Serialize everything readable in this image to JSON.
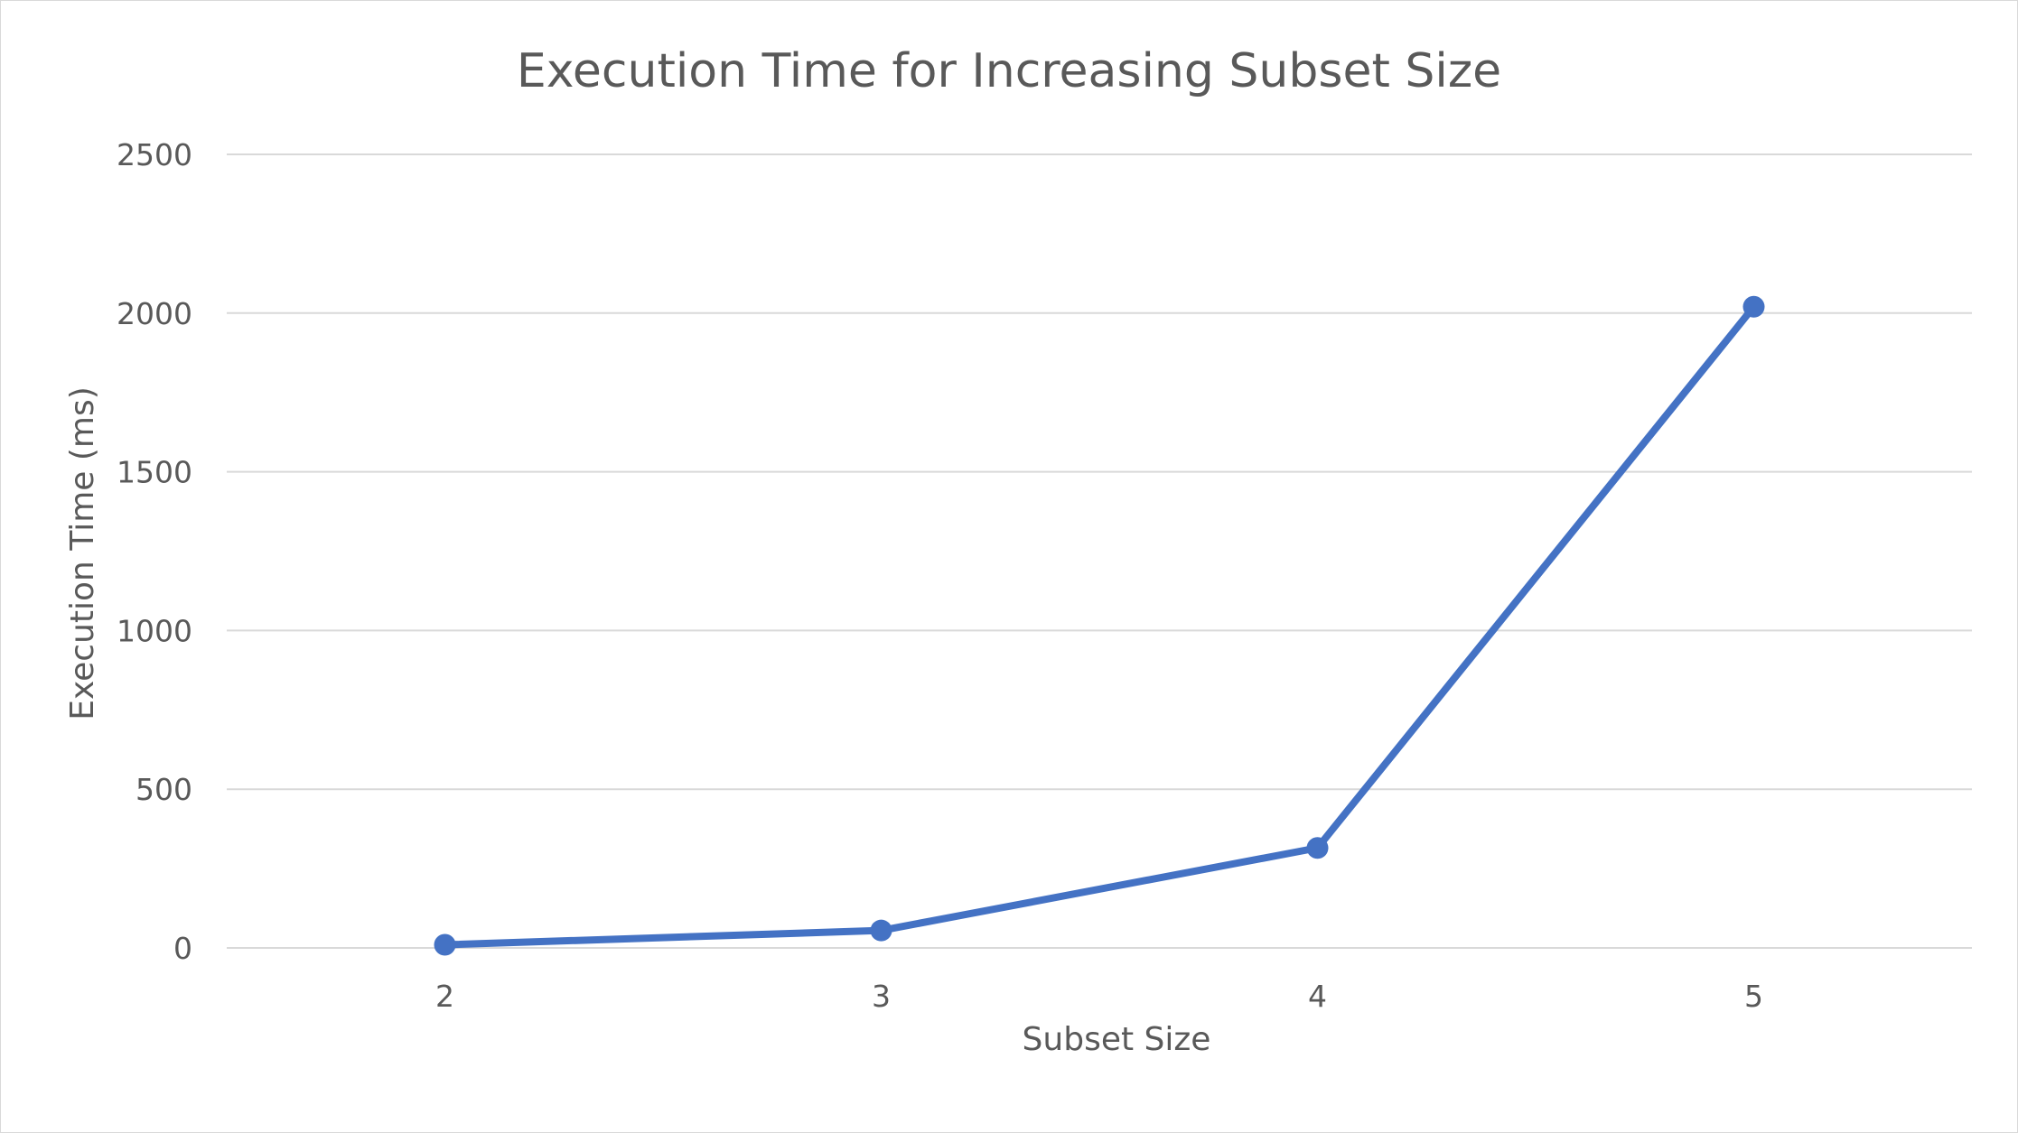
{
  "chart_data": {
    "type": "line",
    "title": "Execution Time for Increasing Subset Size",
    "xlabel": "Subset Size",
    "ylabel": "Execution Time (ms)",
    "categories": [
      "2",
      "3",
      "4",
      "5"
    ],
    "series": [
      {
        "values": [
          10,
          55,
          315,
          2020
        ],
        "color": "#4472c4"
      }
    ],
    "ylim": [
      0,
      2500
    ],
    "yticks": [
      "0",
      "500",
      "1000",
      "1500",
      "2000",
      "2500"
    ],
    "grid": true,
    "legend": "none"
  }
}
